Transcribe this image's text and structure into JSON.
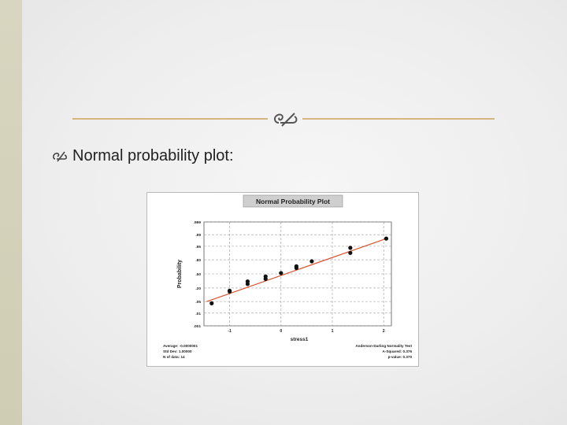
{
  "slide": {
    "bullet_text": "Normal probability plot:",
    "icons": {
      "divider": "curl-ornament-icon",
      "bullet": "curl-bullet-icon"
    },
    "colors": {
      "accent": "#d8b47e",
      "fit_line": "#d9552f",
      "points": "#111111"
    }
  },
  "chart_data": {
    "type": "scatter",
    "title": "Normal Probability Plot",
    "xlabel": "stress1",
    "ylabel": "Probability",
    "xlim": [
      -1.5,
      2.15
    ],
    "x_ticks": [
      "-1",
      "0",
      "1",
      "2"
    ],
    "x_tick_values": [
      -1,
      0,
      1,
      2
    ],
    "y_ticks": [
      ".999",
      ".99",
      ".95",
      ".80",
      ".50",
      ".20",
      ".05",
      ".01",
      ".001"
    ],
    "y_tick_values": [
      3.09,
      2.33,
      1.645,
      0.84,
      0,
      -0.84,
      -1.645,
      -2.33,
      -3.09
    ],
    "ylim": [
      -3.09,
      3.09
    ],
    "grid": true,
    "fit_line": {
      "x": [
        -1.45,
        2.05
      ],
      "y": [
        -1.65,
        2.1
      ]
    },
    "points": [
      {
        "x": -1.35,
        "y": -1.75
      },
      {
        "x": -1.0,
        "y": -1.05
      },
      {
        "x": -1.0,
        "y": -1.0
      },
      {
        "x": -0.65,
        "y": -0.6
      },
      {
        "x": -0.65,
        "y": -0.45
      },
      {
        "x": -0.3,
        "y": -0.3
      },
      {
        "x": -0.3,
        "y": -0.15
      },
      {
        "x": 0.0,
        "y": 0.05
      },
      {
        "x": 0.3,
        "y": 0.35
      },
      {
        "x": 0.3,
        "y": 0.45
      },
      {
        "x": 0.6,
        "y": 0.75
      },
      {
        "x": 1.35,
        "y": 1.25
      },
      {
        "x": 1.35,
        "y": 1.55
      },
      {
        "x": 2.05,
        "y": 2.1
      }
    ],
    "stats_left": [
      "Average: -0.0000001",
      "Std Dev: 1.00000",
      "N of data: 14"
    ],
    "stats_right": [
      "Anderson-Darling Normality Test",
      "A-Squared: 0.376",
      "p-value: 0.370"
    ]
  }
}
